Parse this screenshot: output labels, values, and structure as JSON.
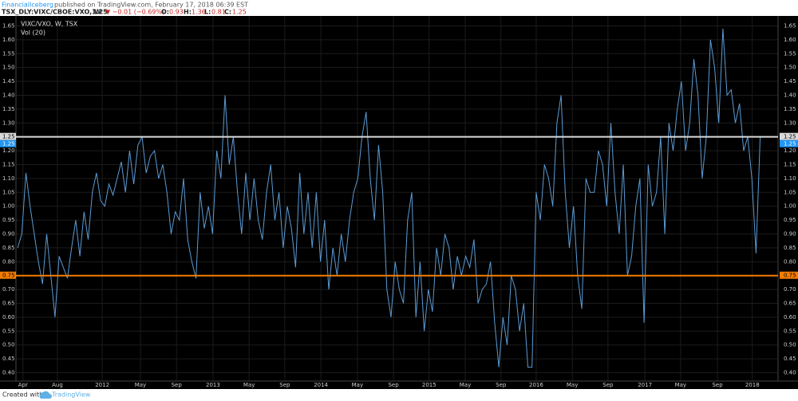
{
  "header": {
    "author": "FinancialIceberg",
    "published": "published on TradingView.com, February 17, 2018 06:39 EST",
    "symbol": "TSX_DLY:VIXC/CBOE:VXO, W",
    "last": "1.25",
    "change": "▼ −0.01 (−0.69%)",
    "o_label": "O:",
    "o": "0.93",
    "h_label": "H:",
    "h": "1.36",
    "l_label": "L:",
    "l": "0.81",
    "c_label": "C:",
    "c": "1.25"
  },
  "chart_data": {
    "type": "line",
    "title": "VIXC/VXO, W, TSX",
    "subtitle": "Vol (20)",
    "series": [
      {
        "name": "VIXC/VXO",
        "color": "#5b9bd5",
        "values": [
          0.85,
          0.9,
          1.12,
          1.0,
          0.9,
          0.8,
          0.72,
          0.9,
          0.75,
          0.6,
          0.82,
          0.78,
          0.74,
          0.85,
          0.95,
          0.82,
          0.98,
          0.88,
          1.05,
          1.12,
          1.02,
          1.0,
          1.08,
          1.04,
          1.1,
          1.16,
          1.05,
          1.2,
          1.08,
          1.22,
          1.25,
          1.12,
          1.18,
          1.2,
          1.1,
          1.15,
          1.05,
          0.9,
          0.98,
          0.95,
          1.1,
          0.88,
          0.8,
          0.74,
          1.05,
          0.92,
          1.0,
          0.9,
          1.2,
          1.1,
          1.4,
          1.15,
          1.25,
          1.05,
          0.9,
          1.12,
          0.95,
          1.1,
          0.95,
          0.88,
          1.05,
          1.15,
          0.95,
          1.05,
          0.85,
          1.0,
          0.92,
          0.78,
          1.12,
          0.9,
          1.05,
          0.85,
          1.05,
          0.8,
          0.95,
          0.7,
          0.85,
          0.75,
          0.9,
          0.8,
          0.95,
          1.05,
          1.1,
          1.25,
          1.34,
          1.1,
          0.95,
          1.22,
          1.05,
          0.7,
          0.6,
          0.8,
          0.7,
          0.65,
          0.95,
          1.05,
          0.6,
          0.8,
          0.55,
          0.7,
          0.62,
          0.85,
          0.75,
          0.9,
          0.85,
          0.7,
          0.82,
          0.75,
          0.82,
          0.78,
          0.88,
          0.65,
          0.7,
          0.72,
          0.8,
          0.58,
          0.42,
          0.6,
          0.5,
          0.75,
          0.7,
          0.55,
          0.65,
          0.42,
          0.42,
          1.05,
          0.95,
          1.15,
          1.1,
          1.0,
          1.3,
          1.4,
          1.05,
          0.85,
          1.0,
          0.75,
          0.63,
          1.1,
          1.05,
          1.05,
          1.2,
          1.15,
          1.0,
          1.3,
          1.05,
          0.9,
          1.15,
          0.75,
          0.82,
          1.0,
          1.1,
          0.58,
          1.15,
          1.0,
          1.05,
          1.25,
          0.9,
          1.3,
          1.2,
          1.35,
          1.45,
          1.2,
          1.3,
          1.53,
          1.4,
          1.1,
          1.25,
          1.6,
          1.5,
          1.3,
          1.64,
          1.4,
          1.42,
          1.3,
          1.37,
          1.2,
          1.25,
          1.1,
          0.83,
          1.25
        ]
      }
    ],
    "last_value": {
      "value": 1.25,
      "label": "1.25",
      "color": "#2196f3"
    },
    "hlines": [
      {
        "value": 1.25,
        "label": "1.25",
        "color": "#d9d9d9"
      },
      {
        "value": 0.75,
        "label": "0.75",
        "color": "#f57c00"
      }
    ],
    "xlim": [
      -0.4,
      183.3
    ],
    "xticks": [
      {
        "value": 1.3,
        "label": "Apr"
      },
      {
        "value": 9.6,
        "label": "Aug"
      },
      {
        "value": 20.4,
        "label": "2012"
      },
      {
        "value": 29.6,
        "label": "May"
      },
      {
        "value": 38.3,
        "label": "Sep"
      },
      {
        "value": 47.1,
        "label": "2013"
      },
      {
        "value": 55.8,
        "label": "May"
      },
      {
        "value": 64.4,
        "label": "Sep"
      },
      {
        "value": 73.1,
        "label": "2014"
      },
      {
        "value": 81.9,
        "label": "May"
      },
      {
        "value": 90.6,
        "label": "Sep"
      },
      {
        "value": 99.2,
        "label": "2015"
      },
      {
        "value": 107.9,
        "label": "May"
      },
      {
        "value": 116.5,
        "label": "Sep"
      },
      {
        "value": 125,
        "label": "2016"
      },
      {
        "value": 133.7,
        "label": "May"
      },
      {
        "value": 142.3,
        "label": "Sep"
      },
      {
        "value": 151.2,
        "label": "2017"
      },
      {
        "value": 159.8,
        "label": "May"
      },
      {
        "value": 168.7,
        "label": "Sep"
      },
      {
        "value": 177.1,
        "label": "2018"
      }
    ],
    "ylim": [
      0.37,
      1.68
    ],
    "yticks": [
      {
        "value": 0.4,
        "label": "0.40"
      },
      {
        "value": 0.45,
        "label": "0.45"
      },
      {
        "value": 0.5,
        "label": "0.50"
      },
      {
        "value": 0.55,
        "label": "0.55"
      },
      {
        "value": 0.6,
        "label": "0.60"
      },
      {
        "value": 0.65,
        "label": "0.65"
      },
      {
        "value": 0.7,
        "label": "0.70"
      },
      {
        "value": 0.75,
        "label": "0.75"
      },
      {
        "value": 0.8,
        "label": "0.80"
      },
      {
        "value": 0.85,
        "label": "0.85"
      },
      {
        "value": 0.9,
        "label": "0.90"
      },
      {
        "value": 0.95,
        "label": "0.95"
      },
      {
        "value": 1,
        "label": "1.00"
      },
      {
        "value": 1.05,
        "label": "1.05"
      },
      {
        "value": 1.1,
        "label": "1.10"
      },
      {
        "value": 1.15,
        "label": "1.15"
      },
      {
        "value": 1.2,
        "label": "1.20"
      },
      {
        "value": 1.25,
        "label": "1.25"
      },
      {
        "value": 1.3,
        "label": "1.30"
      },
      {
        "value": 1.35,
        "label": "1.35"
      },
      {
        "value": 1.4,
        "label": "1.40"
      },
      {
        "value": 1.45,
        "label": "1.45"
      },
      {
        "value": 1.5,
        "label": "1.50"
      },
      {
        "value": 1.55,
        "label": "1.55"
      },
      {
        "value": 1.6,
        "label": "1.60"
      },
      {
        "value": 1.65,
        "label": "1.65"
      }
    ],
    "grid": true
  },
  "footer": {
    "created": "Created with",
    "brand": "TradingView"
  }
}
